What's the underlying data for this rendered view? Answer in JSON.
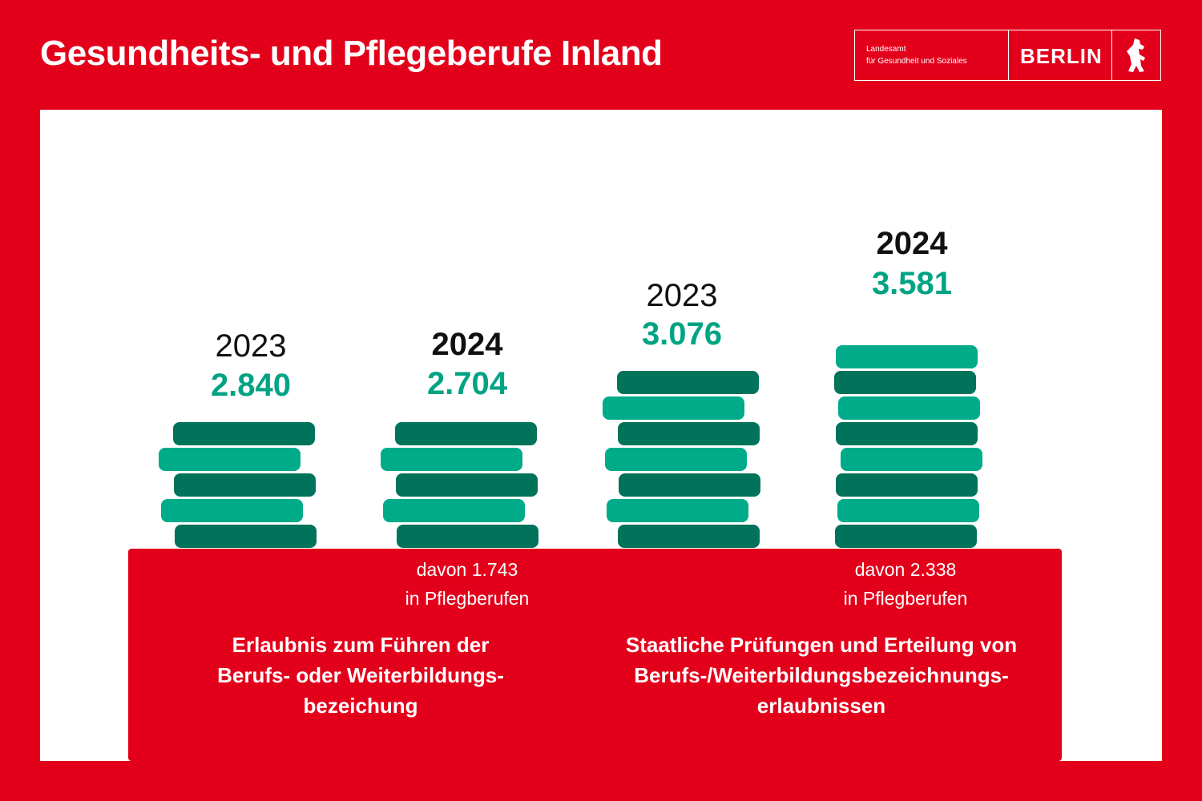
{
  "header": {
    "title": "Gesundheits- und Pflegeberufe Inland",
    "logo_line1": "Landesamt",
    "logo_line2": "für Gesundheit und Soziales",
    "logo_word": "BERLIN"
  },
  "groups": [
    {
      "label_lines": [
        "Erlaubnis zum Führen der",
        "Berufs- oder Weiterbildungs-",
        "bezeichung"
      ],
      "items": [
        {
          "year": "2023",
          "value": "2.840"
        },
        {
          "year": "2024",
          "value": "2.704",
          "note_lines": [
            "davon 1.743",
            "in Pflegberufen"
          ]
        }
      ]
    },
    {
      "label_lines": [
        "Staatliche Prüfungen und Erteilung von",
        "Berufs-/Weiterbildungsbezeichnungs-",
        "erlaubnissen"
      ],
      "items": [
        {
          "year": "2023",
          "value": "3.076"
        },
        {
          "year": "2024",
          "value": "3.581",
          "note_lines": [
            "davon 2.338",
            "in Pflegberufen"
          ]
        }
      ]
    }
  ]
}
